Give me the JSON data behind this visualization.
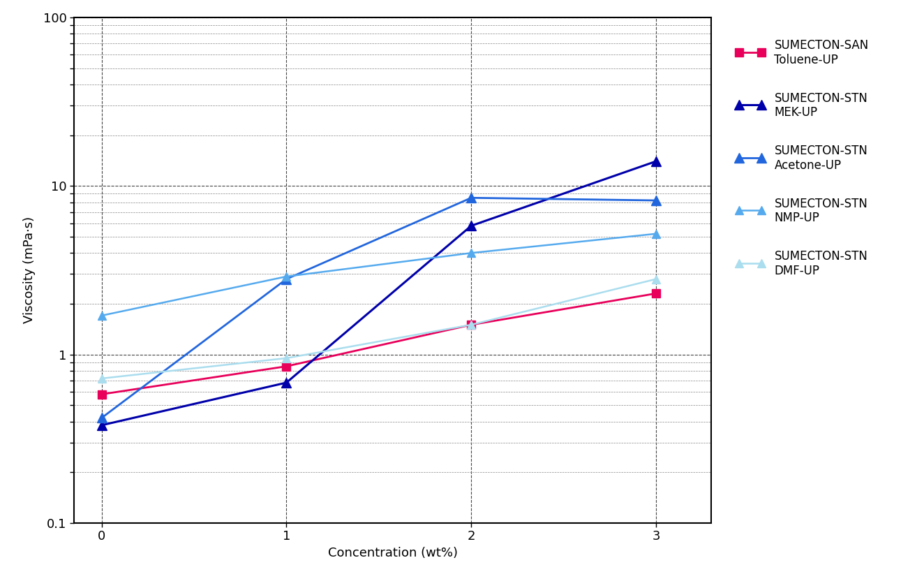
{
  "series": [
    {
      "label": "SUMECTON-SAN\nToluene-UP",
      "color": "#E8005A",
      "marker": "s",
      "markersize": 8,
      "linewidth": 2.0,
      "x": [
        0,
        1,
        2,
        3
      ],
      "y": [
        0.58,
        0.85,
        1.5,
        2.3
      ]
    },
    {
      "label": "SUMECTON-STN\nMEK-UP",
      "color": "#0000AA",
      "marker": "^",
      "markersize": 10,
      "linewidth": 2.2,
      "x": [
        0,
        1,
        2,
        3
      ],
      "y": [
        0.38,
        0.68,
        5.8,
        14.0
      ]
    },
    {
      "label": "SUMECTON-STN\nAcetone-UP",
      "color": "#2266DD",
      "marker": "^",
      "markersize": 10,
      "linewidth": 2.0,
      "x": [
        0,
        1,
        2,
        3
      ],
      "y": [
        0.42,
        2.8,
        8.5,
        8.2
      ]
    },
    {
      "label": "SUMECTON-STN\nNMP-UP",
      "color": "#55AAEE",
      "marker": "^",
      "markersize": 9,
      "linewidth": 1.8,
      "x": [
        0,
        1,
        2,
        3
      ],
      "y": [
        1.7,
        2.9,
        4.0,
        5.2
      ]
    },
    {
      "label": "SUMECTON-STN\nDMF-UP",
      "color": "#AADDEE",
      "marker": "^",
      "markersize": 9,
      "linewidth": 1.8,
      "x": [
        0,
        1,
        2,
        3
      ],
      "y": [
        0.72,
        0.95,
        1.5,
        2.8
      ]
    }
  ],
  "xlabel": "Concentration (wt%)",
  "ylabel": "Viscosity (mPa·s)",
  "ylim": [
    0.1,
    100
  ],
  "xlim": [
    -0.15,
    3.3
  ],
  "xticks": [
    0,
    1,
    2,
    3
  ],
  "figsize": [
    13.24,
    8.32
  ],
  "dpi": 100,
  "background_color": "#FFFFFF",
  "legend_fontsize": 12,
  "axis_fontsize": 13,
  "tick_fontsize": 13
}
